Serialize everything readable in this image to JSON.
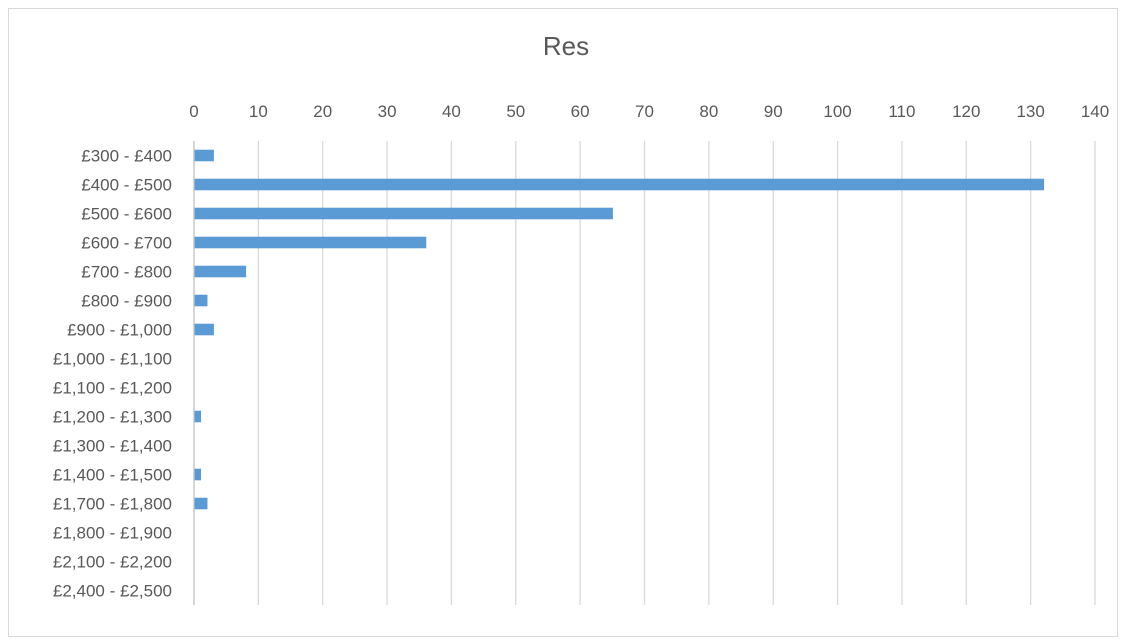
{
  "chart_data": {
    "type": "bar",
    "orientation": "horizontal",
    "title": "Res",
    "xlabel": "",
    "ylabel": "",
    "xlim": [
      0,
      140
    ],
    "x_ticks": [
      "0",
      "10",
      "20",
      "30",
      "40",
      "50",
      "60",
      "70",
      "80",
      "90",
      "100",
      "110",
      "120",
      "130",
      "140"
    ],
    "x_axis_position": "top",
    "grid": true,
    "legend": "none",
    "bar_color": "#5b9bd5",
    "categories": [
      "£300 - £400",
      "£400 - £500",
      "£500 - £600",
      "£600 - £700",
      "£700 - £800",
      "£800 - £900",
      "£900 - £1,000",
      "£1,000 - £1,100",
      "£1,100 - £1,200",
      "£1,200 - £1,300",
      "£1,300 - £1,400",
      "£1,400 - £1,500",
      "£1,700 - £1,800",
      "£1,800 - £1,900",
      "£2,100 - £2,200",
      "£2,400 - £2,500"
    ],
    "values": [
      3,
      132,
      65,
      36,
      8,
      2,
      3,
      0,
      0,
      1,
      0,
      1,
      2,
      0,
      0,
      0
    ]
  }
}
